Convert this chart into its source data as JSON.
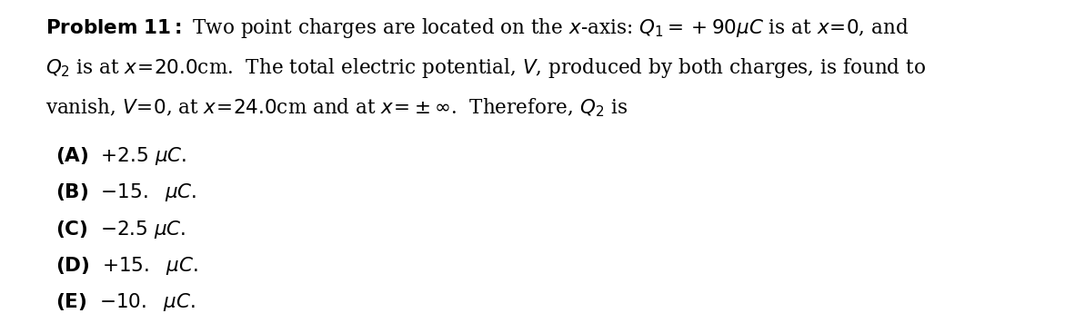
{
  "title_bold": "Problem 11:",
  "title_normal": " Two point charges are located on the ",
  "line1_parts": [
    {
      "text": "Problem 11:",
      "bold": true
    },
    {
      "text": " Two point charges are located on the ",
      "bold": false
    },
    {
      "text": "x",
      "italic": true
    },
    {
      "text": "-axis: ",
      "bold": false
    },
    {
      "text": "Q",
      "italic": true
    },
    {
      "text": "1",
      "sub": true
    },
    {
      "text": " = +90μC is at ",
      "bold": false
    },
    {
      "text": "x",
      "italic": true
    },
    {
      "text": " = 0, and",
      "bold": false
    }
  ],
  "line2_parts": [
    {
      "text": "Q",
      "italic": true
    },
    {
      "text": "2",
      "sub": true
    },
    {
      "text": " is at ",
      "bold": false
    },
    {
      "text": "x",
      "italic": true
    },
    {
      "text": " = 20.0cm.  The total electric potential, ",
      "bold": false
    },
    {
      "text": "V",
      "italic": true
    },
    {
      "text": ", produced by both charges, is found to",
      "bold": false
    }
  ],
  "line3_parts": [
    {
      "text": "vanish, ",
      "bold": false
    },
    {
      "text": "V",
      "italic": true
    },
    {
      "text": " = 0, at ",
      "bold": false
    },
    {
      "text": "x",
      "italic": true
    },
    {
      "text": " = 24.0cm and at ",
      "bold": false
    },
    {
      "text": "x",
      "italic": true
    },
    {
      "text": " = ±∞.  Therefore, ",
      "bold": false
    },
    {
      "text": "Q",
      "italic": true
    },
    {
      "text": "2",
      "sub": true
    },
    {
      "text": " is",
      "bold": false
    }
  ],
  "options": [
    {
      "label": "(A)",
      "text": "  +2.5 μC."
    },
    {
      "label": "(B)",
      "text": "  −15.  μC."
    },
    {
      "label": "(C)",
      "text": "  −2.5 μC."
    },
    {
      "label": "(D)",
      "text": "  +15.  μC."
    },
    {
      "label": "(E)",
      "text": "  −10.  μC."
    }
  ],
  "bg_color": "#ffffff",
  "text_color": "#000000",
  "font_size": 15.5,
  "option_font_size": 15.5
}
